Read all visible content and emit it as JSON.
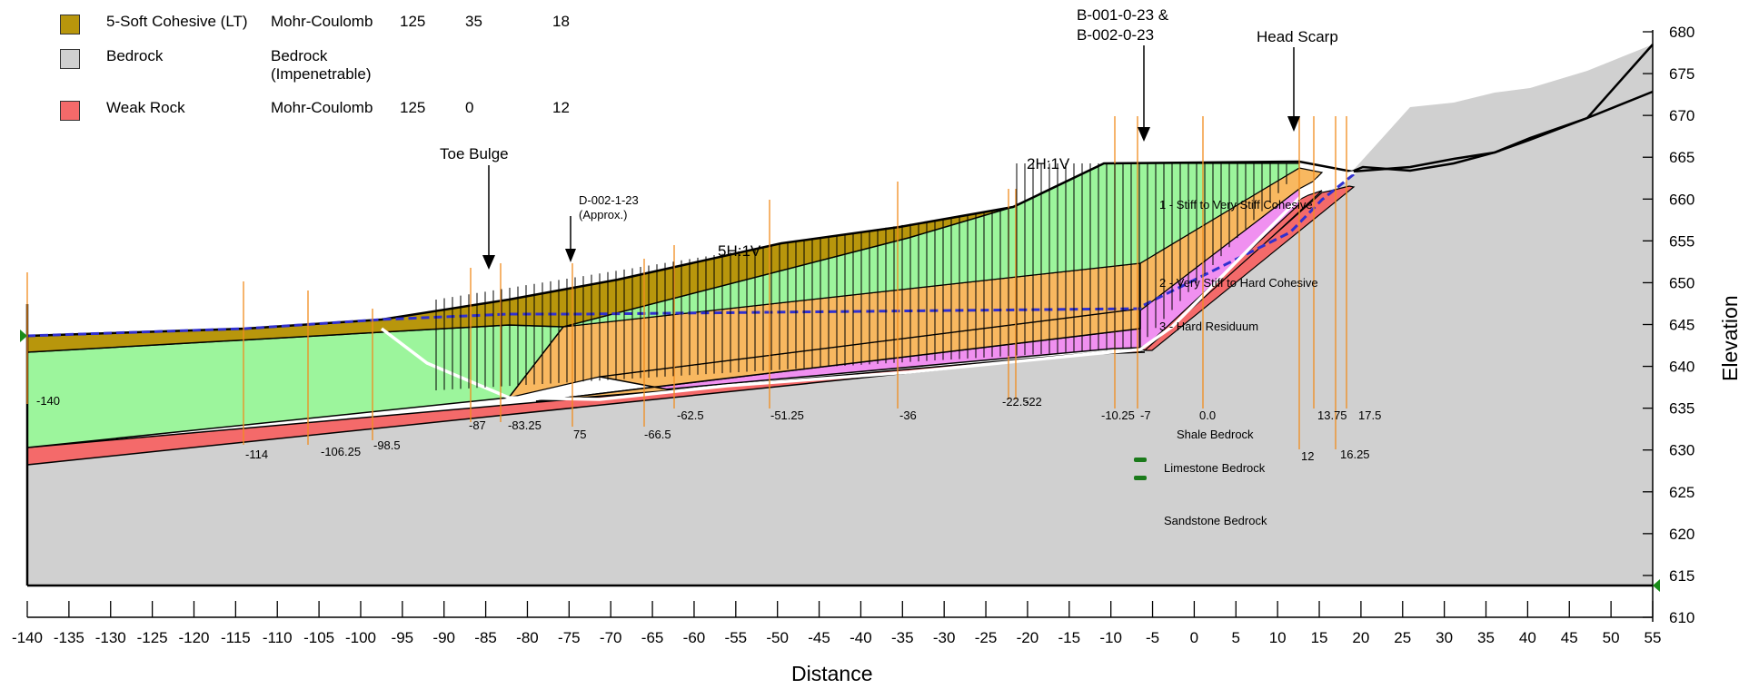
{
  "legend": [
    {
      "color": "#b8960c",
      "name": "5-Soft Cohesive (LT)",
      "model": "Mohr-Coulomb",
      "v1": "125",
      "v2": "35",
      "v3": "18"
    },
    {
      "color": "#d0d0d0",
      "name": "Bedrock",
      "model": "Bedrock (Impenetrable)",
      "v1": "",
      "v2": "",
      "v3": ""
    },
    {
      "color": "#f46a6a",
      "name": "Weak Rock",
      "model": "Mohr-Coulomb",
      "v1": "125",
      "v2": "0",
      "v3": "12"
    }
  ],
  "axes": {
    "x_label": "Distance",
    "y_label": "Elevation",
    "x_ticks": [
      "-140",
      "-135",
      "-130",
      "-125",
      "-120",
      "-115",
      "-110",
      "-105",
      "-100",
      "-95",
      "-90",
      "-85",
      "-80",
      "-75",
      "-70",
      "-65",
      "-60",
      "-55",
      "-50",
      "-45",
      "-40",
      "-35",
      "-30",
      "-25",
      "-20",
      "-15",
      "-10",
      "-5",
      "0",
      "5",
      "10",
      "15",
      "20",
      "25",
      "30",
      "35",
      "40",
      "45",
      "50",
      "55"
    ],
    "y_ticks": [
      "610",
      "615",
      "620",
      "625",
      "630",
      "635",
      "640",
      "645",
      "650",
      "655",
      "660",
      "665",
      "670",
      "675",
      "680"
    ]
  },
  "annotations": {
    "borings": "B-001-0-23 &",
    "borings2": "B-002-0-23",
    "head_scarp": "Head Scarp",
    "toe_bulge": "Toe Bulge",
    "d002": "D-002-1-23",
    "d002_sub": "(Approx.)",
    "slope_5h": "5H:1V",
    "slope_2h": "2H:1V"
  },
  "layers": {
    "l1": "1 - Stiff to Very Stiff Cohesive",
    "l2": "2 - Very Stiff to Hard Cohesive",
    "l3": "3 - Hard Residuum",
    "shale": "Shale Bedrock",
    "limestone": "Limestone Bedrock",
    "sandstone": "Sandstone Bedrock"
  },
  "station_labels": [
    "-140",
    "-114",
    "-106.25",
    "-98.5",
    "-87",
    "-83.25",
    "75",
    "-66.5",
    "-62.5",
    "-51.25",
    "-36",
    "-22.5",
    "-22",
    "-10.25",
    "-7",
    "0.0",
    "12",
    "13.75",
    "16.25",
    "17.5"
  ],
  "colors": {
    "soft_cohesive": "#b8960c",
    "bedrock": "#d0d0d0",
    "weak_rock": "#f46a6a",
    "layer1": "#9cf59c",
    "layer2": "#f8b860",
    "layer3": "#f090f0",
    "water_table": "#3030d0",
    "slip_surface": "#ffffff",
    "piezometers": "#f08c1e"
  }
}
